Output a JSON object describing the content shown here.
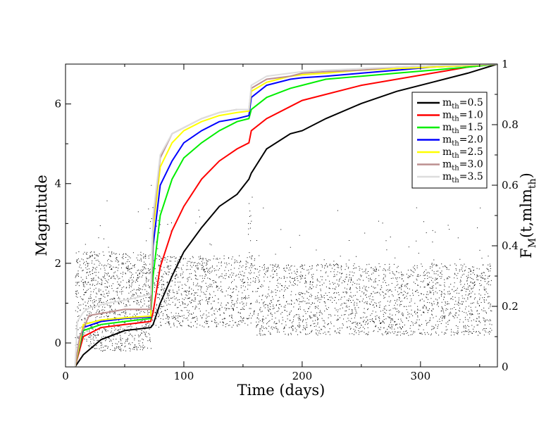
{
  "chart_data": {
    "type": "line",
    "xlabel": "Time (days)",
    "ylabel_left": "Magnitude",
    "ylabel_right": "F_M(t,mlm_th)",
    "ylabel_right_parts": {
      "f": "F",
      "f_sub": "M",
      "arg": "(t,mlm",
      "arg_sub": "th",
      "close": ")"
    },
    "xlim": [
      0,
      365
    ],
    "ylim_left": [
      -0.6,
      7.0
    ],
    "ylim_right": [
      0,
      1
    ],
    "x_ticks": [
      "0",
      "100",
      "200",
      "300"
    ],
    "y_left_ticks": [
      "0",
      "2",
      "4",
      "6"
    ],
    "y_right_ticks": [
      "0",
      "0.2",
      "0.4",
      "0.6",
      "0.8",
      "1"
    ],
    "legend_location": "upper-right",
    "scatter_description": "daily earthquake magnitudes (dense black points)",
    "series": [
      {
        "name": "m_th=0.5",
        "label_main": "m",
        "label_sub": "th",
        "label_value": "=0.5",
        "color": "#000000",
        "points": [
          [
            8,
            0
          ],
          [
            15,
            0.04
          ],
          [
            30,
            0.09
          ],
          [
            50,
            0.12
          ],
          [
            72,
            0.13
          ],
          [
            74,
            0.14
          ],
          [
            80,
            0.21
          ],
          [
            90,
            0.3
          ],
          [
            100,
            0.38
          ],
          [
            115,
            0.46
          ],
          [
            130,
            0.53
          ],
          [
            145,
            0.57
          ],
          [
            155,
            0.62
          ],
          [
            157,
            0.64
          ],
          [
            170,
            0.72
          ],
          [
            190,
            0.77
          ],
          [
            200,
            0.78
          ],
          [
            220,
            0.82
          ],
          [
            250,
            0.87
          ],
          [
            280,
            0.91
          ],
          [
            310,
            0.94
          ],
          [
            340,
            0.97
          ],
          [
            365,
            1.0
          ]
        ]
      },
      {
        "name": "m_th=1.0",
        "label_main": "m",
        "label_sub": "th",
        "label_value": "=1.0",
        "color": "#ff0000",
        "points": [
          [
            8,
            0
          ],
          [
            15,
            0.1
          ],
          [
            30,
            0.13
          ],
          [
            50,
            0.14
          ],
          [
            72,
            0.15
          ],
          [
            74,
            0.18
          ],
          [
            80,
            0.33
          ],
          [
            90,
            0.45
          ],
          [
            100,
            0.53
          ],
          [
            115,
            0.62
          ],
          [
            130,
            0.68
          ],
          [
            145,
            0.72
          ],
          [
            155,
            0.74
          ],
          [
            157,
            0.78
          ],
          [
            170,
            0.82
          ],
          [
            190,
            0.86
          ],
          [
            200,
            0.88
          ],
          [
            220,
            0.9
          ],
          [
            250,
            0.93
          ],
          [
            280,
            0.95
          ],
          [
            310,
            0.97
          ],
          [
            340,
            0.99
          ],
          [
            365,
            1.0
          ]
        ]
      },
      {
        "name": "m_th=1.5",
        "label_main": "m",
        "label_sub": "th",
        "label_value": "=1.5",
        "color": "#00ee00",
        "points": [
          [
            8,
            0
          ],
          [
            15,
            0.12
          ],
          [
            30,
            0.14
          ],
          [
            50,
            0.15
          ],
          [
            72,
            0.16
          ],
          [
            74,
            0.3
          ],
          [
            80,
            0.5
          ],
          [
            90,
            0.62
          ],
          [
            100,
            0.69
          ],
          [
            115,
            0.74
          ],
          [
            130,
            0.78
          ],
          [
            145,
            0.81
          ],
          [
            155,
            0.82
          ],
          [
            157,
            0.85
          ],
          [
            170,
            0.89
          ],
          [
            190,
            0.92
          ],
          [
            200,
            0.93
          ],
          [
            220,
            0.95
          ],
          [
            250,
            0.96
          ],
          [
            280,
            0.97
          ],
          [
            310,
            0.98
          ],
          [
            340,
            0.99
          ],
          [
            365,
            1.0
          ]
        ]
      },
      {
        "name": "m_th=2.0",
        "label_main": "m",
        "label_sub": "th",
        "label_value": "=2.0",
        "color": "#0000ff",
        "points": [
          [
            8,
            0
          ],
          [
            15,
            0.13
          ],
          [
            30,
            0.15
          ],
          [
            50,
            0.16
          ],
          [
            72,
            0.165
          ],
          [
            74,
            0.4
          ],
          [
            80,
            0.6
          ],
          [
            90,
            0.68
          ],
          [
            100,
            0.74
          ],
          [
            115,
            0.78
          ],
          [
            130,
            0.81
          ],
          [
            145,
            0.82
          ],
          [
            155,
            0.83
          ],
          [
            157,
            0.89
          ],
          [
            170,
            0.93
          ],
          [
            190,
            0.95
          ],
          [
            200,
            0.955
          ],
          [
            220,
            0.96
          ],
          [
            250,
            0.97
          ],
          [
            280,
            0.98
          ],
          [
            310,
            0.99
          ],
          [
            340,
            0.995
          ],
          [
            365,
            1.0
          ]
        ]
      },
      {
        "name": "m_th=2.5",
        "label_main": "m",
        "label_sub": "th",
        "label_value": "=2.5",
        "color": "#ffff00",
        "points": [
          [
            8,
            0
          ],
          [
            15,
            0.14
          ],
          [
            30,
            0.155
          ],
          [
            50,
            0.162
          ],
          [
            72,
            0.168
          ],
          [
            74,
            0.45
          ],
          [
            80,
            0.66
          ],
          [
            90,
            0.74
          ],
          [
            100,
            0.78
          ],
          [
            115,
            0.81
          ],
          [
            130,
            0.83
          ],
          [
            145,
            0.84
          ],
          [
            155,
            0.845
          ],
          [
            157,
            0.91
          ],
          [
            170,
            0.94
          ],
          [
            190,
            0.96
          ],
          [
            200,
            0.965
          ],
          [
            220,
            0.97
          ],
          [
            250,
            0.98
          ],
          [
            280,
            0.985
          ],
          [
            310,
            0.99
          ],
          [
            340,
            0.995
          ],
          [
            365,
            1.0
          ]
        ]
      },
      {
        "name": "m_th=3.0",
        "label_main": "m",
        "label_sub": "th",
        "label_value": "=3.0",
        "color": "#bc8f8f",
        "points": [
          [
            8,
            0
          ],
          [
            12,
            0.1
          ],
          [
            20,
            0.17
          ],
          [
            35,
            0.18
          ],
          [
            50,
            0.19
          ],
          [
            72,
            0.19
          ],
          [
            74,
            0.48
          ],
          [
            80,
            0.69
          ],
          [
            90,
            0.77
          ],
          [
            100,
            0.79
          ],
          [
            115,
            0.82
          ],
          [
            130,
            0.84
          ],
          [
            145,
            0.85
          ],
          [
            155,
            0.85
          ],
          [
            157,
            0.92
          ],
          [
            170,
            0.95
          ],
          [
            190,
            0.96
          ],
          [
            200,
            0.97
          ],
          [
            220,
            0.975
          ],
          [
            250,
            0.98
          ],
          [
            280,
            0.99
          ],
          [
            310,
            0.995
          ],
          [
            340,
            0.997
          ],
          [
            365,
            1.0
          ]
        ]
      },
      {
        "name": "m_th=3.5",
        "label_main": "m",
        "label_sub": "th",
        "label_value": "=3.5",
        "color": "#dddddd",
        "points": [
          [
            8,
            0
          ],
          [
            10,
            0.15
          ],
          [
            15,
            0.18
          ],
          [
            20,
            0.195
          ],
          [
            35,
            0.21
          ],
          [
            50,
            0.22
          ],
          [
            72,
            0.24
          ],
          [
            74,
            0.5
          ],
          [
            80,
            0.7
          ],
          [
            90,
            0.77
          ],
          [
            100,
            0.79
          ],
          [
            115,
            0.82
          ],
          [
            130,
            0.84
          ],
          [
            145,
            0.85
          ],
          [
            155,
            0.85
          ],
          [
            157,
            0.93
          ],
          [
            170,
            0.96
          ],
          [
            190,
            0.97
          ],
          [
            200,
            0.975
          ],
          [
            220,
            0.98
          ],
          [
            250,
            0.985
          ],
          [
            280,
            0.99
          ],
          [
            310,
            0.995
          ],
          [
            340,
            0.998
          ],
          [
            365,
            1.0
          ]
        ]
      }
    ]
  }
}
